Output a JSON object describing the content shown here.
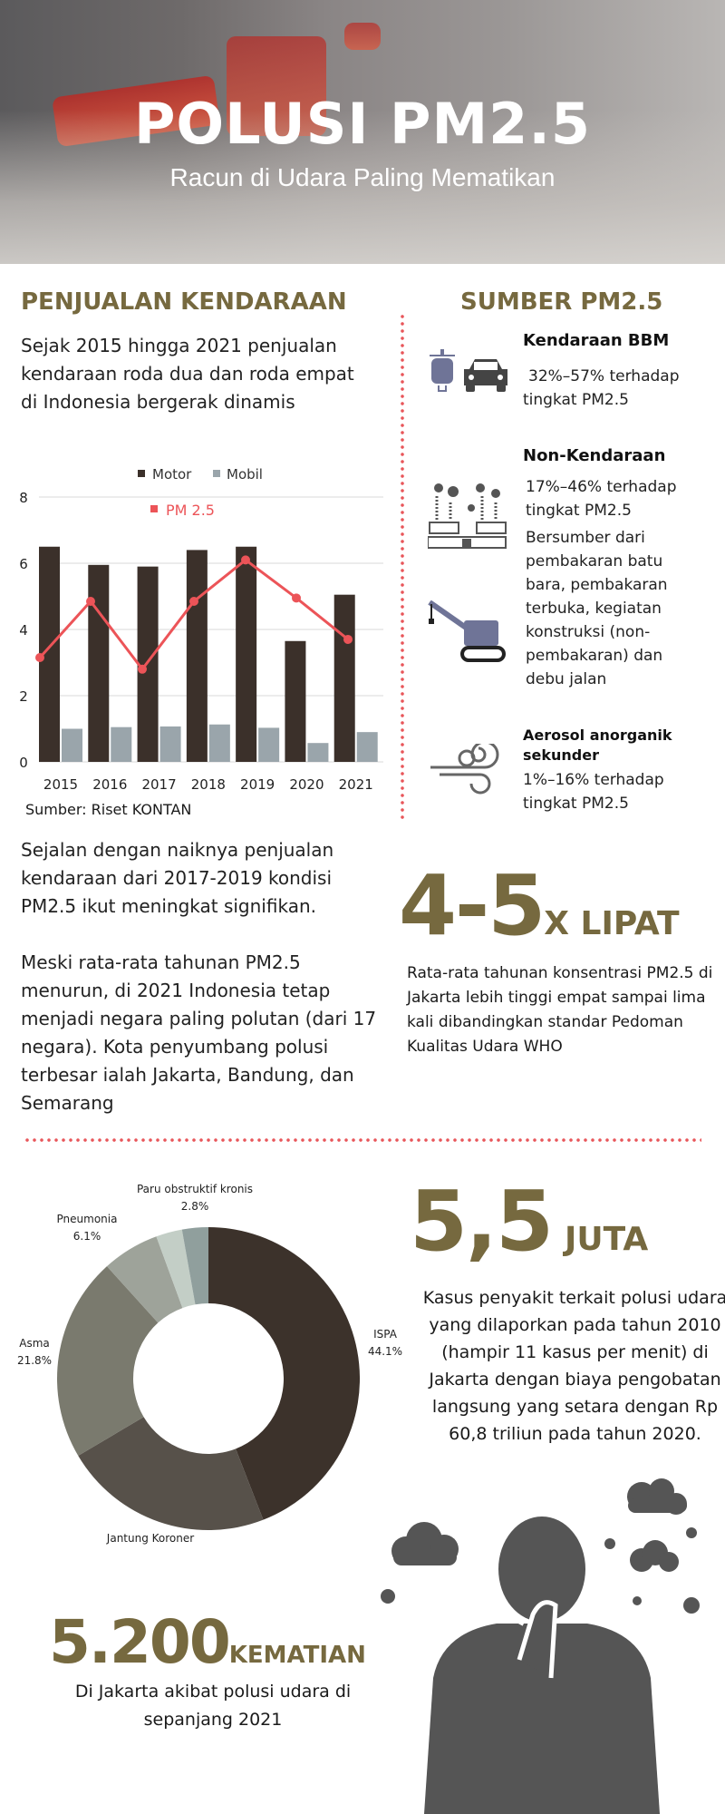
{
  "header": {
    "title": "POLUSI PM2.5",
    "subtitle": "Racun di Udara Paling Mematikan"
  },
  "left": {
    "title": "PENJUALAN KENDARAAN",
    "intro": "Sejak 2015 hingga 2021 penjualan kendaraan roda dua dan roda empat di Indonesia bergerak dinamis",
    "source": "Sumber: Riset KONTAN",
    "para1": "Sejalan dengan naiknya penjualan kendaraan dari 2017-2019 kondisi PM2.5 ikut meningkat signifikan.",
    "para2": "Meski rata-rata tahunan PM2.5 menurun, di 2021 Indonesia tetap menjadi negara paling polutan (dari 17 negara). Kota penyumbang polusi terbesar ialah Jakarta, Bandung, dan Semarang"
  },
  "right": {
    "title": "SUMBER PM2.5",
    "sources": [
      {
        "title": "Kendaraan BBM",
        "text": "32%–57% terhadap tingkat PM2.5",
        "icons": [
          "scooter-icon",
          "car-icon"
        ]
      },
      {
        "title": "Non-Kendaraan",
        "text": "17%–46% terhadap tingkat PM2.5",
        "detail": "Bersumber dari pembakaran batu bara, pembakaran terbuka, kegiatan konstruksi (non-pembakaran) dan debu jalan",
        "icons": [
          "factory-icon",
          "crane-icon"
        ]
      },
      {
        "title": "Aerosol anorganik sekunder",
        "text": "1%–16% terhadap tingkat PM2.5",
        "icons": [
          "wind-icon"
        ]
      }
    ]
  },
  "stat_lipat": {
    "value": "4-5",
    "unit": "X LIPAT",
    "text": "Rata-rata tahunan konsentrasi PM2.5 di Jakarta lebih tinggi empat sampai lima kali dibandingkan standar Pedoman Kualitas Udara WHO"
  },
  "stat_juta": {
    "value": "5,5",
    "unit": "JUTA",
    "text": "Kasus penyakit terkait polusi udara yang dilaporkan pada tahun 2010 (hampir 11 kasus per menit) di Jakarta dengan biaya pengobatan langsung yang setara dengan Rp 60,8 triliun pada tahun 2020."
  },
  "stat_kematian": {
    "value": "5.200",
    "unit": "KEMATIAN",
    "text": "Di Jakarta akibat polusi udara di sepanjang 2021"
  },
  "colors": {
    "accent": "#76693f",
    "motor": "#3b302a",
    "mobil": "#9aa5ab",
    "pm": "#ec5458",
    "dots": "#e8565a"
  },
  "chart_data": [
    {
      "type": "bar",
      "categories": [
        "2015",
        "2016",
        "2017",
        "2018",
        "2019",
        "2020",
        "2021"
      ],
      "ylim": [
        0,
        8
      ],
      "yticks": [
        0,
        2,
        4,
        6,
        8
      ],
      "grid": true,
      "legend": "top",
      "series": [
        {
          "name": "Motor",
          "type": "bar",
          "color": "#3b302a",
          "values": [
            6.5,
            5.95,
            5.9,
            6.4,
            6.5,
            3.65,
            5.05
          ]
        },
        {
          "name": "Mobil",
          "type": "bar",
          "color": "#9aa5ab",
          "values": [
            1.0,
            1.05,
            1.07,
            1.13,
            1.03,
            0.57,
            0.9
          ]
        },
        {
          "name": "PM 2.5",
          "type": "line",
          "color": "#ec5458",
          "values": [
            3.15,
            4.85,
            2.8,
            4.85,
            6.1,
            4.95,
            3.7
          ]
        }
      ]
    },
    {
      "type": "pie",
      "donut": true,
      "slices": [
        {
          "label": "ISPA",
          "value": 44.1,
          "text": "44.1%",
          "color": "#3c322b"
        },
        {
          "label": "Jantung Koroner",
          "value": 22.4,
          "text": "22.4%",
          "color": "#57514a"
        },
        {
          "label": "Asma",
          "value": 21.8,
          "text": "21.8%",
          "color": "#7a7a6e"
        },
        {
          "label": "Pneumonia",
          "value": 6.1,
          "text": "6.1%",
          "color": "#9ea39a"
        },
        {
          "label": "",
          "value": 2.8,
          "text": "",
          "color": "#c3cec6"
        },
        {
          "label": "Paru obstruktif kronis",
          "value": 2.8,
          "text": "2.8%",
          "color": "#909f9d"
        }
      ]
    }
  ]
}
